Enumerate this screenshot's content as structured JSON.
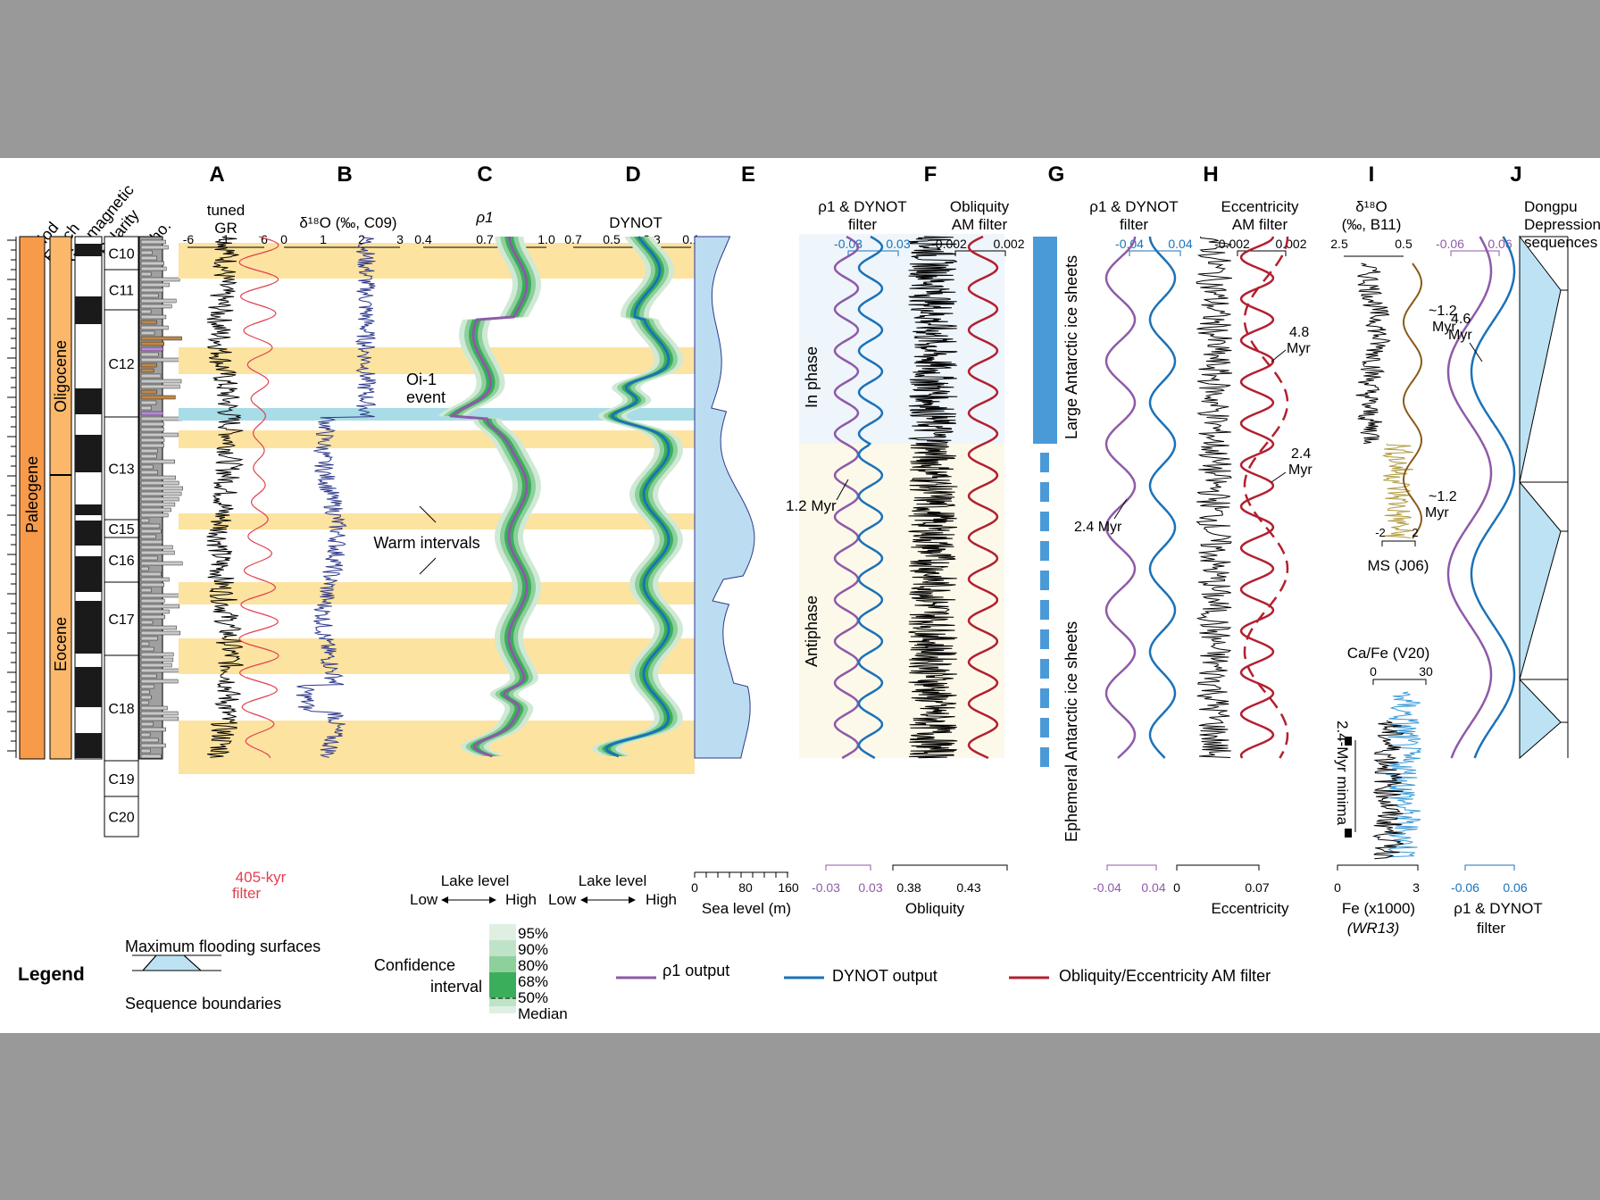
{
  "columns": {
    "left": [
      "Period",
      "Epoch",
      "Geomagnetic",
      "Polarity",
      "Litho."
    ],
    "period": "Paleogene",
    "epochs": [
      "Oligocene",
      "Eocene"
    ],
    "chrons": [
      "C10",
      "C11",
      "C12",
      "C13",
      "C15",
      "C16",
      "C17",
      "C18",
      "C19",
      "C20"
    ]
  },
  "panels": {
    "A": {
      "letter": "A",
      "title1": "tuned",
      "title2": "GR",
      "ticks": [
        "-6",
        "1",
        "6"
      ],
      "filter1": "405-kyr",
      "filter2": "filter"
    },
    "B": {
      "letter": "B",
      "title": "δ¹⁸O (‰, C09)",
      "ticks": [
        "0",
        "1",
        "2",
        "3"
      ],
      "note1": "Oi-1",
      "note2": "event",
      "note3": "Warm intervals"
    },
    "C": {
      "letter": "C",
      "title": "ρ1",
      "ticks": [
        "0.4",
        "0.7",
        "1.0"
      ],
      "bottom": "Lake level",
      "low": "Low",
      "high": "High"
    },
    "D": {
      "letter": "D",
      "title": "DYNOT",
      "ticks": [
        "0.7",
        "0.5",
        "0.3",
        "0.1"
      ],
      "bottom": "Lake level",
      "low": "Low",
      "high": "High"
    },
    "E": {
      "letter": "E",
      "ticks": [
        "0",
        "80",
        "160"
      ],
      "xlabel": "Sea level (m)"
    },
    "F": {
      "letter": "F",
      "t1a": "ρ1 & DYNOT",
      "t1b": "filter",
      "t2a": "Obliquity",
      "t2b": "AM filter",
      "ticks1": [
        "-0.03",
        "0.03"
      ],
      "ticks2": [
        "-0.002",
        "0.002"
      ],
      "bticks1": [
        "-0.03",
        "0.03"
      ],
      "bticks2": [
        "0.38",
        "0.43"
      ],
      "xlabel": "Obliquity",
      "inphase": "In phase",
      "antiphase": "Antiphase",
      "myr": "1.2 Myr"
    },
    "G": {
      "letter": "G",
      "large": "Large Antarctic ice sheets",
      "ephemeral": "Ephemeral Antarctic ice sheets"
    },
    "H": {
      "letter": "H",
      "t1a": "ρ1 & DYNOT",
      "t1b": "filter",
      "t2a": "Eccentricity",
      "t2b": "AM filter",
      "ticks1": [
        "-0.04",
        "0.04"
      ],
      "ticks2": [
        "-0.002",
        "0.002"
      ],
      "bticks1": [
        "-0.04",
        "0.04"
      ],
      "bticks2": [
        "0",
        "0.07"
      ],
      "xlabel": "Eccentricity",
      "myr24": "2.4 Myr",
      "m48a": "4.8",
      "m48b": "Myr",
      "m24a": "2.4",
      "m24b": "Myr"
    },
    "I": {
      "letter": "I",
      "t1": "δ¹⁸O",
      "t2": "(‰, B11)",
      "ticks": [
        "2.5",
        "0.5"
      ],
      "ms": "MS (J06)",
      "msticks": [
        "-2",
        "2"
      ],
      "myr1a": "~1.2",
      "myr1b": "Myr",
      "myr2a": "~1.2",
      "myr2b": "Myr",
      "cafe": "Ca/Fe (V20)",
      "cafeticks": [
        "0",
        "30"
      ],
      "fe": "Fe (x1000)",
      "fe2": "(WR13)",
      "feticks": [
        "0",
        "3"
      ],
      "minima": "2.4-Myr minima"
    },
    "J": {
      "letter": "J",
      "t1": "Dongpu",
      "t2": "Depression",
      "t3": "sequences",
      "ticks": [
        "-0.06",
        "0.06"
      ],
      "bticks": [
        "-0.06",
        "0.06"
      ],
      "myra": "4.6",
      "myrb": "Myr",
      "xlabel1": "ρ1 & DYNOT",
      "xlabel2": "filter"
    }
  },
  "legend": {
    "title": "Legend",
    "mfs": "Maximum flooding surfaces",
    "sb": "Sequence boundaries",
    "ci1": "Confidence",
    "ci2": "interval",
    "ci_levels": [
      "95%",
      "90%",
      "80%",
      "68%",
      "50%",
      "Median"
    ],
    "rho": "ρ1 output",
    "dynot": "DYNOT output",
    "am": "Obliquity/Eccentricity AM filter"
  },
  "colors": {
    "warm": "#fde3a0",
    "oi1": "#a8dce6",
    "gr": "#000000",
    "filter405": "#e04050",
    "d18o": "#2e3a8c",
    "rho": "#8e5aa8",
    "dynot": "#1b72b8",
    "am": "#b22030",
    "sea": "#bcdcf2",
    "ci": "#3aae5a",
    "ms": "#b09a40",
    "cafe": "#3a9ad8",
    "j_fill": "#bde2f4"
  },
  "chart_data": [
    {
      "type": "line",
      "title": "ρ1 & DYNOT filter vs Obliquity AM filter",
      "phases": [
        "In phase",
        "Antiphase"
      ],
      "period_label": "1.2 Myr"
    },
    {
      "type": "line",
      "title": "ρ1 & DYNOT filter vs Eccentricity AM filter",
      "period_labels": [
        "2.4 Myr",
        "4.8 Myr"
      ]
    },
    {
      "type": "line",
      "title": "Dongpu Depression sequences",
      "period_label": "4.6 Myr"
    }
  ]
}
